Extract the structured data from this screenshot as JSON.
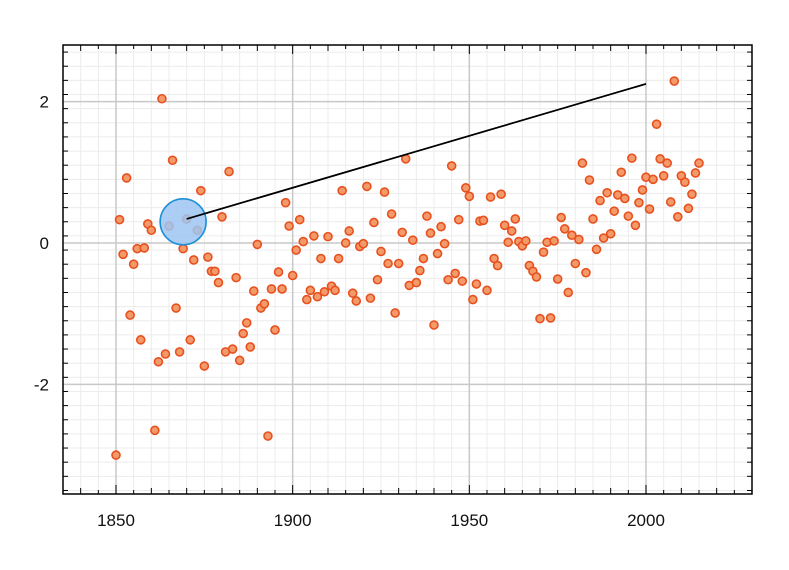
{
  "chart_data": {
    "type": "scatter",
    "title": "",
    "xlabel": "",
    "ylabel": "",
    "xlim": [
      1835,
      2030
    ],
    "ylim": [
      -3.55,
      2.8
    ],
    "x_ticks": [
      1850,
      1900,
      1950,
      2000
    ],
    "x_tick_labels": [
      "1850",
      "1900",
      "1950",
      "2000"
    ],
    "y_ticks": [
      -2,
      0,
      2
    ],
    "y_tick_labels": [
      "-2",
      "0",
      "2"
    ],
    "grid": true,
    "minor_grid": true,
    "legend": "none",
    "colors": {
      "point_fill": "#f39a6a",
      "point_stroke": "#e8501e",
      "major_grid": "#c8c8c8",
      "minor_grid": "#ececec",
      "axis": "#000000",
      "line": "#000000",
      "handle_fill": "#9ec6f2",
      "handle_stroke": "#1e90d6"
    },
    "series": [
      {
        "points": [
          [
            1850,
            -3.0
          ],
          [
            1851,
            0.33
          ],
          [
            1852,
            -0.16
          ],
          [
            1853,
            0.92
          ],
          [
            1854,
            -1.02
          ],
          [
            1855,
            -0.3
          ],
          [
            1856,
            -0.08
          ],
          [
            1857,
            -1.37
          ],
          [
            1858,
            -0.07
          ],
          [
            1859,
            0.27
          ],
          [
            1860,
            0.18
          ],
          [
            1861,
            -2.65
          ],
          [
            1862,
            -1.68
          ],
          [
            1863,
            2.04
          ],
          [
            1864,
            -1.57
          ],
          [
            1865,
            0.24
          ],
          [
            1866,
            1.17
          ],
          [
            1867,
            -0.92
          ],
          [
            1868,
            -1.54
          ],
          [
            1869,
            -0.08
          ],
          [
            1870,
            0.34
          ],
          [
            1871,
            -1.37
          ],
          [
            1872,
            -0.24
          ],
          [
            1873,
            0.18
          ],
          [
            1874,
            0.74
          ],
          [
            1875,
            -1.74
          ],
          [
            1876,
            -0.2
          ],
          [
            1877,
            -0.4
          ],
          [
            1878,
            -0.4
          ],
          [
            1879,
            -0.56
          ],
          [
            1880,
            0.37
          ],
          [
            1881,
            -1.54
          ],
          [
            1882,
            1.01
          ],
          [
            1883,
            -1.5
          ],
          [
            1884,
            -0.49
          ],
          [
            1885,
            -1.66
          ],
          [
            1886,
            -1.28
          ],
          [
            1887,
            -1.13
          ],
          [
            1888,
            -1.47
          ],
          [
            1889,
            -0.68
          ],
          [
            1890,
            -0.02
          ],
          [
            1891,
            -0.92
          ],
          [
            1892,
            -0.86
          ],
          [
            1893,
            -2.73
          ],
          [
            1894,
            -0.65
          ],
          [
            1895,
            -1.23
          ],
          [
            1896,
            -0.41
          ],
          [
            1897,
            -0.65
          ],
          [
            1898,
            0.57
          ],
          [
            1899,
            0.24
          ],
          [
            1900,
            -0.46
          ],
          [
            1901,
            -0.1
          ],
          [
            1902,
            0.33
          ],
          [
            1903,
            0.02
          ],
          [
            1904,
            -0.8
          ],
          [
            1905,
            -0.67
          ],
          [
            1906,
            0.1
          ],
          [
            1907,
            -0.76
          ],
          [
            1908,
            -0.22
          ],
          [
            1909,
            -0.69
          ],
          [
            1910,
            0.09
          ],
          [
            1911,
            -0.61
          ],
          [
            1912,
            -0.67
          ],
          [
            1913,
            -0.22
          ],
          [
            1914,
            0.74
          ],
          [
            1915,
            0.0
          ],
          [
            1916,
            0.17
          ],
          [
            1917,
            -0.71
          ],
          [
            1918,
            -0.82
          ],
          [
            1919,
            -0.05
          ],
          [
            1920,
            -0.01
          ],
          [
            1921,
            0.8
          ],
          [
            1922,
            -0.78
          ],
          [
            1923,
            0.29
          ],
          [
            1924,
            -0.52
          ],
          [
            1925,
            -0.12
          ],
          [
            1926,
            0.72
          ],
          [
            1927,
            -0.29
          ],
          [
            1928,
            0.41
          ],
          [
            1929,
            -0.99
          ],
          [
            1930,
            -0.29
          ],
          [
            1931,
            0.15
          ],
          [
            1932,
            1.19
          ],
          [
            1933,
            -0.6
          ],
          [
            1934,
            0.04
          ],
          [
            1935,
            -0.56
          ],
          [
            1936,
            -0.39
          ],
          [
            1937,
            -0.22
          ],
          [
            1938,
            0.38
          ],
          [
            1939,
            0.14
          ],
          [
            1940,
            -1.16
          ],
          [
            1941,
            -0.15
          ],
          [
            1942,
            0.23
          ],
          [
            1943,
            -0.01
          ],
          [
            1944,
            -0.52
          ],
          [
            1945,
            1.09
          ],
          [
            1946,
            -0.43
          ],
          [
            1947,
            0.33
          ],
          [
            1948,
            -0.54
          ],
          [
            1949,
            0.78
          ],
          [
            1950,
            0.66
          ],
          [
            1951,
            -0.8
          ],
          [
            1952,
            -0.58
          ],
          [
            1953,
            0.31
          ],
          [
            1954,
            0.32
          ],
          [
            1955,
            -0.67
          ],
          [
            1956,
            0.65
          ],
          [
            1957,
            -0.22
          ],
          [
            1958,
            -0.32
          ],
          [
            1959,
            0.69
          ],
          [
            1960,
            0.25
          ],
          [
            1961,
            0.01
          ],
          [
            1962,
            0.17
          ],
          [
            1963,
            0.34
          ],
          [
            1964,
            0.02
          ],
          [
            1965,
            -0.04
          ],
          [
            1966,
            0.03
          ],
          [
            1967,
            -0.32
          ],
          [
            1968,
            -0.4
          ],
          [
            1969,
            -0.48
          ],
          [
            1970,
            -1.07
          ],
          [
            1971,
            -0.13
          ],
          [
            1972,
            0.01
          ],
          [
            1973,
            -1.06
          ],
          [
            1974,
            0.03
          ],
          [
            1975,
            -0.51
          ],
          [
            1976,
            0.36
          ],
          [
            1977,
            0.2
          ],
          [
            1978,
            -0.7
          ],
          [
            1979,
            0.11
          ],
          [
            1980,
            -0.29
          ],
          [
            1981,
            0.05
          ],
          [
            1982,
            1.13
          ],
          [
            1983,
            -0.42
          ],
          [
            1984,
            0.89
          ],
          [
            1985,
            0.34
          ],
          [
            1986,
            -0.09
          ],
          [
            1987,
            0.6
          ],
          [
            1988,
            0.07
          ],
          [
            1989,
            0.71
          ],
          [
            1990,
            0.13
          ],
          [
            1991,
            0.45
          ],
          [
            1992,
            0.68
          ],
          [
            1993,
            1.0
          ],
          [
            1994,
            0.63
          ],
          [
            1995,
            0.38
          ],
          [
            1996,
            1.2
          ],
          [
            1997,
            0.25
          ],
          [
            1998,
            0.57
          ],
          [
            1999,
            0.75
          ],
          [
            2000,
            0.93
          ],
          [
            2001,
            0.48
          ],
          [
            2002,
            0.9
          ],
          [
            2003,
            1.68
          ],
          [
            2004,
            1.19
          ],
          [
            2005,
            0.95
          ],
          [
            2006,
            1.13
          ],
          [
            2007,
            0.58
          ],
          [
            2008,
            2.29
          ],
          [
            2009,
            0.37
          ],
          [
            2010,
            0.95
          ],
          [
            2011,
            0.86
          ],
          [
            2012,
            0.49
          ],
          [
            2013,
            0.69
          ],
          [
            2014,
            0.99
          ],
          [
            2015,
            1.13
          ]
        ]
      }
    ],
    "annotations": [
      {
        "type": "line",
        "x1": 1870,
        "y1": 0.34,
        "x2": 2000,
        "y2": 2.25
      },
      {
        "type": "handle",
        "x": 1869,
        "y": 0.3
      }
    ]
  }
}
